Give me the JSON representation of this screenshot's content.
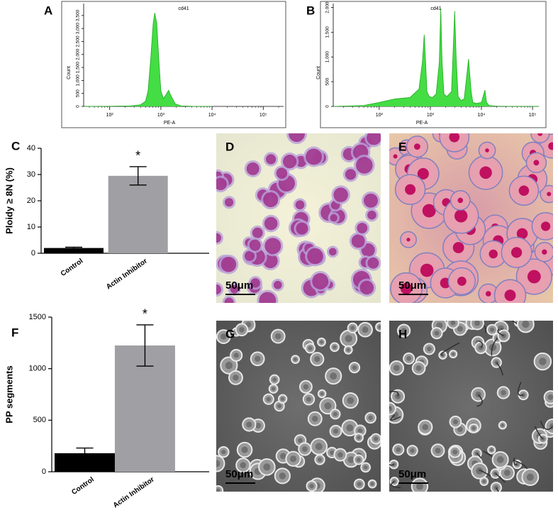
{
  "chart_data": [
    {
      "type": "histogram-area",
      "panel": "A",
      "title": "cd41",
      "x_label": "PE-A",
      "y_label": "Count",
      "xscale": "log",
      "color": "#44dd44",
      "x": [
        31.6,
        100,
        251,
        398,
        501,
        562,
        631,
        708,
        759,
        832,
        912,
        1000,
        1122,
        1259,
        1413,
        1585,
        1905,
        2512,
        3981,
        10000
      ],
      "values": [
        0,
        5,
        20,
        60,
        200,
        600,
        1800,
        3200,
        3600,
        3200,
        1800,
        600,
        300,
        450,
        620,
        400,
        100,
        20,
        5,
        0
      ],
      "xlim": [
        31,
        250000
      ],
      "xticks": [
        {
          "value": 100,
          "label": "10²"
        },
        {
          "value": 1000,
          "label": "10³"
        },
        {
          "value": 10000,
          "label": "10⁴"
        },
        {
          "value": 100000,
          "label": "10⁵"
        }
      ],
      "ylim": [
        0,
        3960
      ],
      "yticks": [
        0,
        500,
        {
          "value": 1000,
          "label": "1,000"
        },
        {
          "value": 1500,
          "label": "1,500"
        },
        {
          "value": 2000,
          "label": "2,000"
        },
        {
          "value": 2500,
          "label": "2,500"
        },
        {
          "value": 3000,
          "label": "3,000"
        },
        {
          "value": 3500,
          "label": "3,500"
        }
      ]
    },
    {
      "type": "histogram-area",
      "panel": "B",
      "title": "cd41",
      "x_label": "PE-A",
      "y_label": "Count",
      "xscale": "log",
      "color": "#44dd44",
      "x": [
        12.6,
        50,
        100,
        200,
        400,
        600,
        700,
        760,
        800,
        860,
        950,
        1100,
        1300,
        1500,
        1600,
        1700,
        1850,
        2100,
        2600,
        3000,
        3200,
        3500,
        4000,
        4600,
        5600,
        6300,
        6800,
        8000,
        10000,
        11700,
        12600,
        14000,
        20000,
        50000,
        133000
      ],
      "values": [
        0,
        20,
        80,
        150,
        180,
        350,
        900,
        1450,
        1000,
        300,
        200,
        180,
        250,
        900,
        1980,
        900,
        250,
        200,
        300,
        1930,
        1000,
        200,
        120,
        150,
        960,
        300,
        80,
        60,
        80,
        330,
        80,
        20,
        5,
        0,
        0
      ],
      "xlim": [
        12.6,
        133000
      ],
      "xticks": [
        {
          "value": 100,
          "label": "10²"
        },
        {
          "value": 1000,
          "label": "10³"
        },
        {
          "value": 10000,
          "label": "10⁴"
        },
        {
          "value": 100000,
          "label": "10⁵"
        }
      ],
      "ylim": [
        0,
        2080
      ],
      "yticks": [
        0,
        500,
        {
          "value": 1000,
          "label": "1,000"
        },
        {
          "value": 1500,
          "label": "1,500"
        },
        {
          "value": 2000,
          "label": "2,000"
        }
      ]
    },
    {
      "type": "bar",
      "panel": "C",
      "y_label": "Ploidy ≥ 8N (%)",
      "categories": [
        "Control",
        "Actin Inhibitor"
      ],
      "values": [
        2,
        29.5
      ],
      "errors": [
        0.3,
        3.5
      ],
      "colors": [
        "#000000",
        "#a0a0a4"
      ],
      "annotation": "*",
      "ylim": [
        0,
        40
      ],
      "yticks": [
        0,
        10,
        20,
        30,
        40
      ]
    },
    {
      "type": "bar",
      "panel": "F",
      "y_label": "PP segments",
      "categories": [
        "Control",
        "Actin Inhibitor"
      ],
      "values": [
        180,
        1225
      ],
      "errors": [
        50,
        200
      ],
      "colors": [
        "#000000",
        "#a0a0a4"
      ],
      "annotation": "*",
      "ylim": [
        0,
        1500
      ],
      "yticks": [
        0,
        500,
        1000,
        1500
      ]
    }
  ],
  "images": [
    {
      "panel": "D",
      "scale_bar": "50μm"
    },
    {
      "panel": "E",
      "scale_bar": "50μm"
    },
    {
      "panel": "G",
      "scale_bar": "50μm"
    },
    {
      "panel": "H",
      "scale_bar": "50μm"
    }
  ]
}
